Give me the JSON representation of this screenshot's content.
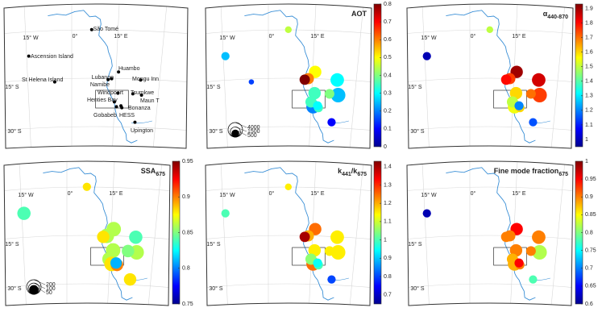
{
  "graticule_labels": [
    "15° W",
    "0°",
    "15° E",
    "15° S",
    "30° S"
  ],
  "stations": [
    {
      "name": "São Tomé",
      "lon": 6.7,
      "lat": 0.3
    },
    {
      "name": "Ascension Island",
      "lon": -14.4,
      "lat": -7.9
    },
    {
      "name": "St Helena Island",
      "lon": -5.7,
      "lat": -15.9
    },
    {
      "name": "Huambo",
      "lon": 15.7,
      "lat": -12.8
    },
    {
      "name": "Lubango",
      "lon": 13.4,
      "lat": -14.9
    },
    {
      "name": "Namibe",
      "lon": 12.2,
      "lat": -15.2
    },
    {
      "name": "Mongu Inn",
      "lon": 23.1,
      "lat": -15.3
    },
    {
      "name": "Windpoort",
      "lon": 15.5,
      "lat": -19.4
    },
    {
      "name": "Henties Bay",
      "lon": 14.3,
      "lat": -22.1
    },
    {
      "name": "Tsumkwe",
      "lon": 20.5,
      "lat": -19.6
    },
    {
      "name": "Maun T",
      "lon": 23.4,
      "lat": -20.0
    },
    {
      "name": "Bonanza",
      "lon": 16.8,
      "lat": -23.9
    },
    {
      "name": "Gobabeb",
      "lon": 15.0,
      "lat": -23.6
    },
    {
      "name": "HESS",
      "lon": 16.5,
      "lat": -23.3
    },
    {
      "name": "Upington",
      "lon": 21.2,
      "lat": -28.4
    }
  ],
  "panels": [
    {
      "type": "station_map"
    },
    {
      "type": "bubble_map",
      "title": [
        "AOT"
      ],
      "colorbar": {
        "lim": [
          0,
          0.8
        ],
        "ticks": [
          0,
          0.1,
          0.2,
          0.3,
          0.4,
          0.5,
          0.6,
          0.7,
          0.8
        ]
      },
      "values": [
        0.45,
        0.25,
        0.15,
        0.5,
        0.6,
        0.8,
        0.3,
        0.35,
        0.35,
        0.4,
        0.25,
        0.35,
        0.2,
        0.3,
        0.1
      ],
      "n": [
        300,
        600,
        100,
        2000,
        1500,
        1200,
        2500,
        2000,
        1500,
        1000,
        3000,
        800,
        2500,
        800,
        600
      ],
      "size_legend": [
        4000,
        1500,
        500
      ]
    },
    {
      "type": "bubble_map",
      "title": [
        "α",
        "440-870"
      ],
      "colorbar": {
        "lim": [
          0.95,
          1.93
        ],
        "ticks": [
          1,
          1.1,
          1.2,
          1.3,
          1.4,
          1.5,
          1.6,
          1.7,
          1.8,
          1.9
        ]
      },
      "values": [
        1.5,
        1.0,
        null,
        1.9,
        1.75,
        1.8,
        1.85,
        1.6,
        1.5,
        1.7,
        1.75,
        1.6,
        1.55,
        1.2,
        1.15
      ],
      "n": [
        300,
        600,
        null,
        2000,
        1500,
        1200,
        2500,
        2000,
        1500,
        1000,
        3000,
        800,
        2500,
        800,
        600
      ]
    },
    {
      "type": "bubble_map",
      "title": [
        "SSA",
        "675"
      ],
      "colorbar": {
        "lim": [
          0.75,
          0.95
        ],
        "ticks": [
          0.75,
          0.8,
          0.85,
          0.9,
          0.95
        ]
      },
      "values": [
        0.88,
        0.84,
        null,
        0.86,
        0.86,
        0.88,
        0.84,
        0.86,
        0.86,
        0.85,
        0.86,
        0.9,
        0.88,
        0.81,
        0.88
      ],
      "n": [
        30,
        120,
        null,
        150,
        150,
        100,
        120,
        150,
        150,
        100,
        150,
        100,
        150,
        80,
        100
      ],
      "size_legend": [
        200,
        100,
        50
      ]
    },
    {
      "type": "bubble_map",
      "title": [
        "k",
        "441",
        "/k",
        "675"
      ],
      "colorbar": {
        "lim": [
          0.65,
          1.43
        ],
        "ticks": [
          0.7,
          0.8,
          0.9,
          1,
          1.1,
          1.2,
          1.3,
          1.4
        ]
      },
      "values": [
        1.15,
        1.0,
        null,
        1.25,
        1.2,
        1.4,
        1.15,
        1.15,
        1.05,
        1.15,
        1.15,
        1.0,
        1.25,
        0.95,
        0.8
      ],
      "n": [
        300,
        600,
        null,
        2000,
        1500,
        1200,
        2500,
        2000,
        1500,
        1000,
        3000,
        800,
        2500,
        800,
        600
      ]
    },
    {
      "type": "bubble_map",
      "title": [
        "Fine mode fraction",
        "675"
      ],
      "colorbar": {
        "lim": [
          0.6,
          1
        ],
        "ticks": [
          0.6,
          0.65,
          0.7,
          0.75,
          0.8,
          0.85,
          0.9,
          0.95,
          1
        ]
      },
      "values": [
        null,
        0.62,
        null,
        0.95,
        0.9,
        0.9,
        0.9,
        0.9,
        0.88,
        0.9,
        0.82,
        0.9,
        0.88,
        0.95,
        0.78
      ],
      "n": [
        null,
        600,
        null,
        2000,
        1500,
        1200,
        2500,
        2000,
        1500,
        1000,
        3000,
        800,
        2500,
        800,
        600
      ]
    }
  ]
}
